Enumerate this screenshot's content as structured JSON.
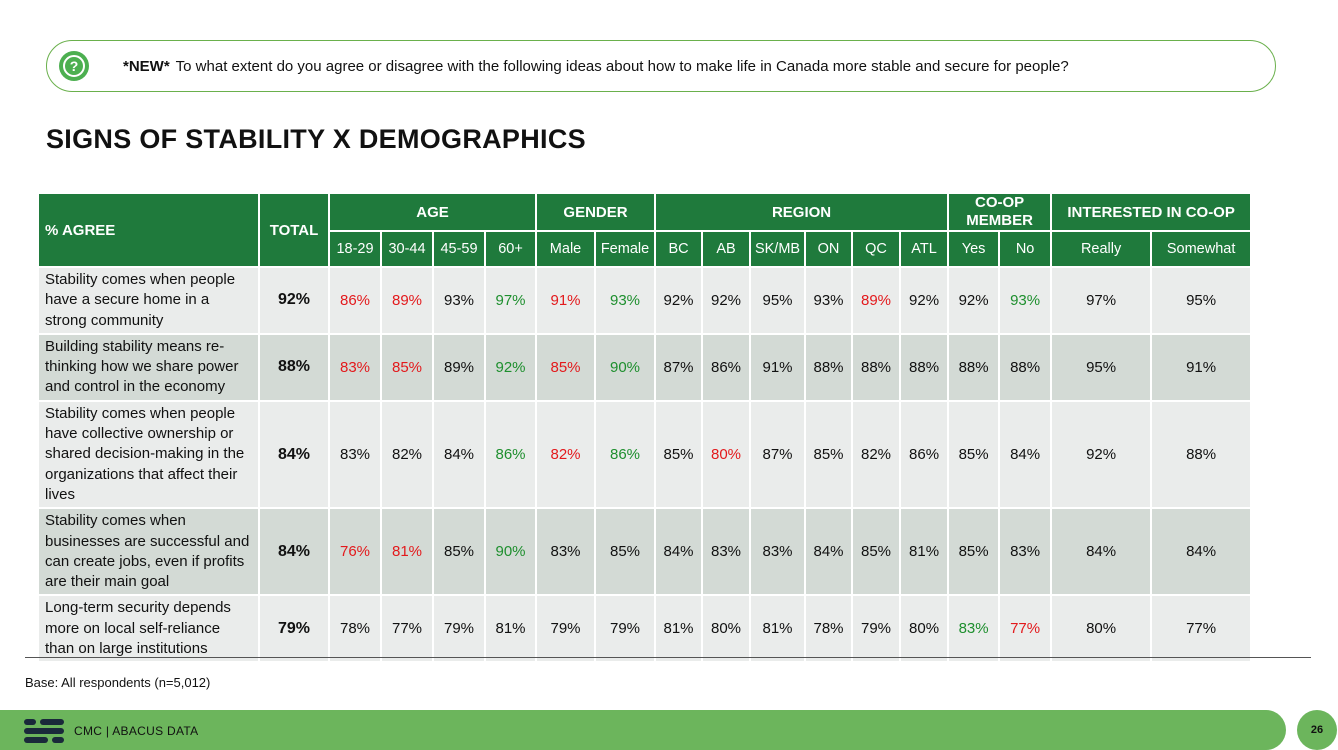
{
  "question": {
    "icon": "question-bubble-icon",
    "prefix": "*NEW*",
    "text": "To what extent do you agree or disagree with the following ideas about how to make life in Canada more stable and secure for people?"
  },
  "title": "SIGNS OF STABILITY X DEMOGRAPHICS",
  "table": {
    "label_header": "% AGREE",
    "total_header": "TOTAL",
    "groups": {
      "age": "AGE",
      "gender": "GENDER",
      "region": "REGION",
      "coop_line1": "CO-OP",
      "coop_line2": "MEMBER",
      "interested": "INTERESTED IN CO-OP"
    },
    "subheaders": [
      "18-29",
      "30-44",
      "45-59",
      "60+",
      "Male",
      "Female",
      "BC",
      "AB",
      "SK/MB",
      "ON",
      "QC",
      "ATL",
      "Yes",
      "No",
      "Really",
      "Somewhat"
    ],
    "rows": [
      {
        "label": "Stability comes when people have a secure home in a strong community",
        "total": "92%",
        "values": [
          "86%",
          "89%",
          "93%",
          "97%",
          "91%",
          "93%",
          "92%",
          "92%",
          "95%",
          "93%",
          "89%",
          "92%",
          "92%",
          "93%",
          "97%",
          "95%"
        ],
        "colors": [
          "red",
          "red",
          "",
          "green",
          "red",
          "green",
          "",
          "",
          "",
          "",
          "red",
          "",
          "",
          "green",
          "",
          ""
        ]
      },
      {
        "label": "Building stability means re-thinking how we share power and control in the economy",
        "total": "88%",
        "values": [
          "83%",
          "85%",
          "89%",
          "92%",
          "85%",
          "90%",
          "87%",
          "86%",
          "91%",
          "88%",
          "88%",
          "88%",
          "88%",
          "88%",
          "95%",
          "91%"
        ],
        "colors": [
          "red",
          "red",
          "",
          "green",
          "red",
          "green",
          "",
          "",
          "",
          "",
          "",
          "",
          "",
          "",
          "",
          ""
        ]
      },
      {
        "label": "Stability comes when people have collective ownership or shared decision-making in the organizations that affect their lives",
        "total": "84%",
        "values": [
          "83%",
          "82%",
          "84%",
          "86%",
          "82%",
          "86%",
          "85%",
          "80%",
          "87%",
          "85%",
          "82%",
          "86%",
          "85%",
          "84%",
          "92%",
          "88%"
        ],
        "colors": [
          "",
          "",
          "",
          "green",
          "red",
          "green",
          "",
          "red",
          "",
          "",
          "",
          "",
          "",
          "",
          "",
          ""
        ]
      },
      {
        "label": "Stability comes when businesses are successful and can create jobs, even if profits are their main goal",
        "total": "84%",
        "values": [
          "76%",
          "81%",
          "85%",
          "90%",
          "83%",
          "85%",
          "84%",
          "83%",
          "83%",
          "84%",
          "85%",
          "81%",
          "85%",
          "83%",
          "84%",
          "84%"
        ],
        "colors": [
          "red",
          "red",
          "",
          "green",
          "",
          "",
          "",
          "",
          "",
          "",
          "",
          "",
          "",
          "",
          "",
          ""
        ]
      },
      {
        "label": "Long-term security depends more on local self-reliance than on large institutions",
        "total": "79%",
        "values": [
          "78%",
          "77%",
          "79%",
          "81%",
          "79%",
          "79%",
          "81%",
          "80%",
          "81%",
          "78%",
          "79%",
          "80%",
          "83%",
          "77%",
          "80%",
          "77%"
        ],
        "colors": [
          "",
          "",
          "",
          "",
          "",
          "",
          "",
          "",
          "",
          "",
          "",
          "",
          "green",
          "red",
          "",
          ""
        ]
      }
    ]
  },
  "base": "Base: All respondents (n=5,012)",
  "footer": {
    "logo_icon": "cmc-logo-icon",
    "text": "CMC  |  ABACUS DATA",
    "page": "26"
  },
  "colors": {
    "header_green": "#1f7a3c",
    "footer_green": "#6cb55c",
    "negative_red": "#e3191c",
    "positive_green": "#1e8f2e"
  }
}
